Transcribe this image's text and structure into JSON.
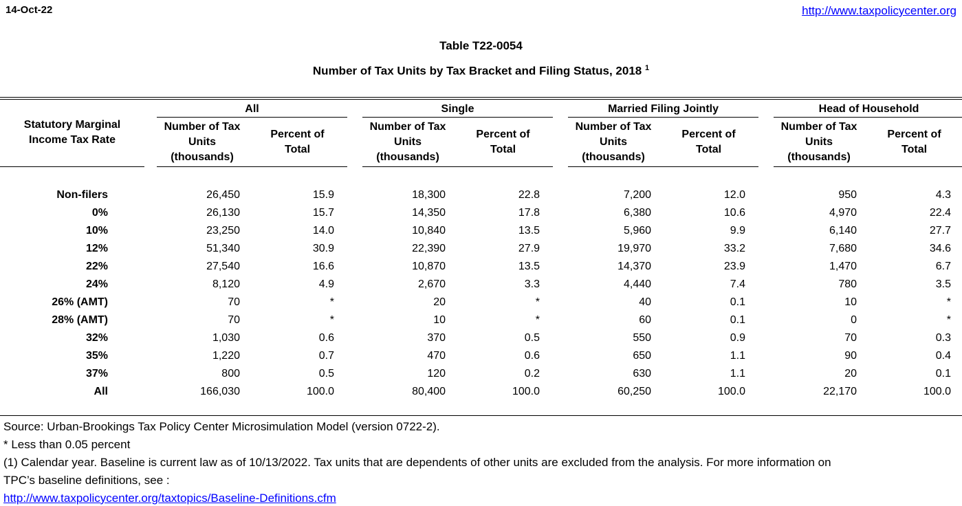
{
  "header": {
    "date": "14-Oct-22",
    "site_url": "http://www.taxpolicycenter.org"
  },
  "title": {
    "line1": "Table T22-0054",
    "line2": "Number of Tax Units by Tax Bracket and Filing Status, 2018",
    "footnote_marker": "1"
  },
  "table": {
    "row_label_header": "Statutory Marginal Income Tax Rate",
    "groups": [
      {
        "label": "All"
      },
      {
        "label": "Single"
      },
      {
        "label": "Married Filing Jointly"
      },
      {
        "label": "Head of Household"
      }
    ],
    "subheaders": {
      "units": "Number of Tax Units (thousands)",
      "percent": "Percent of Total"
    },
    "rows": [
      {
        "label": "Non-filers",
        "all": {
          "units": "26,450",
          "percent": "15.9"
        },
        "single": {
          "units": "18,300",
          "percent": "22.8"
        },
        "married_filing_jointly": {
          "units": "7,200",
          "percent": "12.0"
        },
        "head_of_household": {
          "units": "950",
          "percent": "4.3"
        }
      },
      {
        "label": "0%",
        "all": {
          "units": "26,130",
          "percent": "15.7"
        },
        "single": {
          "units": "14,350",
          "percent": "17.8"
        },
        "married_filing_jointly": {
          "units": "6,380",
          "percent": "10.6"
        },
        "head_of_household": {
          "units": "4,970",
          "percent": "22.4"
        }
      },
      {
        "label": "10%",
        "all": {
          "units": "23,250",
          "percent": "14.0"
        },
        "single": {
          "units": "10,840",
          "percent": "13.5"
        },
        "married_filing_jointly": {
          "units": "5,960",
          "percent": "9.9"
        },
        "head_of_household": {
          "units": "6,140",
          "percent": "27.7"
        }
      },
      {
        "label": "12%",
        "all": {
          "units": "51,340",
          "percent": "30.9"
        },
        "single": {
          "units": "22,390",
          "percent": "27.9"
        },
        "married_filing_jointly": {
          "units": "19,970",
          "percent": "33.2"
        },
        "head_of_household": {
          "units": "7,680",
          "percent": "34.6"
        }
      },
      {
        "label": "22%",
        "all": {
          "units": "27,540",
          "percent": "16.6"
        },
        "single": {
          "units": "10,870",
          "percent": "13.5"
        },
        "married_filing_jointly": {
          "units": "14,370",
          "percent": "23.9"
        },
        "head_of_household": {
          "units": "1,470",
          "percent": "6.7"
        }
      },
      {
        "label": "24%",
        "all": {
          "units": "8,120",
          "percent": "4.9"
        },
        "single": {
          "units": "2,670",
          "percent": "3.3"
        },
        "married_filing_jointly": {
          "units": "4,440",
          "percent": "7.4"
        },
        "head_of_household": {
          "units": "780",
          "percent": "3.5"
        }
      },
      {
        "label": "26% (AMT)",
        "all": {
          "units": "70",
          "percent": "*"
        },
        "single": {
          "units": "20",
          "percent": "*"
        },
        "married_filing_jointly": {
          "units": "40",
          "percent": "0.1"
        },
        "head_of_household": {
          "units": "10",
          "percent": "*"
        }
      },
      {
        "label": "28% (AMT)",
        "all": {
          "units": "70",
          "percent": "*"
        },
        "single": {
          "units": "10",
          "percent": "*"
        },
        "married_filing_jointly": {
          "units": "60",
          "percent": "0.1"
        },
        "head_of_household": {
          "units": "0",
          "percent": "*"
        }
      },
      {
        "label": "32%",
        "all": {
          "units": "1,030",
          "percent": "0.6"
        },
        "single": {
          "units": "370",
          "percent": "0.5"
        },
        "married_filing_jointly": {
          "units": "550",
          "percent": "0.9"
        },
        "head_of_household": {
          "units": "70",
          "percent": "0.3"
        }
      },
      {
        "label": "35%",
        "all": {
          "units": "1,220",
          "percent": "0.7"
        },
        "single": {
          "units": "470",
          "percent": "0.6"
        },
        "married_filing_jointly": {
          "units": "650",
          "percent": "1.1"
        },
        "head_of_household": {
          "units": "90",
          "percent": "0.4"
        }
      },
      {
        "label": "37%",
        "all": {
          "units": "800",
          "percent": "0.5"
        },
        "single": {
          "units": "120",
          "percent": "0.2"
        },
        "married_filing_jointly": {
          "units": "630",
          "percent": "1.1"
        },
        "head_of_household": {
          "units": "20",
          "percent": "0.1"
        }
      },
      {
        "label": "All",
        "all": {
          "units": "166,030",
          "percent": "100.0"
        },
        "single": {
          "units": "80,400",
          "percent": "100.0"
        },
        "married_filing_jointly": {
          "units": "60,250",
          "percent": "100.0"
        },
        "head_of_household": {
          "units": "22,170",
          "percent": "100.0"
        }
      }
    ]
  },
  "footer": {
    "source": "Source: Urban-Brookings Tax Policy Center Microsimulation Model (version 0722-2).",
    "asterisk_note": "* Less than 0.05 percent",
    "note_line1": "(1) Calendar year. Baseline is current law as of 10/13/2022. Tax units that are dependents of other units are excluded from the analysis. For more information on",
    "note_line2": "TPC’s baseline definitions, see :",
    "definitions_url": "http://www.taxpolicycenter.org/taxtopics/Baseline-Definitions.cfm"
  },
  "colors": {
    "link_blue": "#0000FF",
    "text": "#000000",
    "background": "#FFFFFF"
  }
}
